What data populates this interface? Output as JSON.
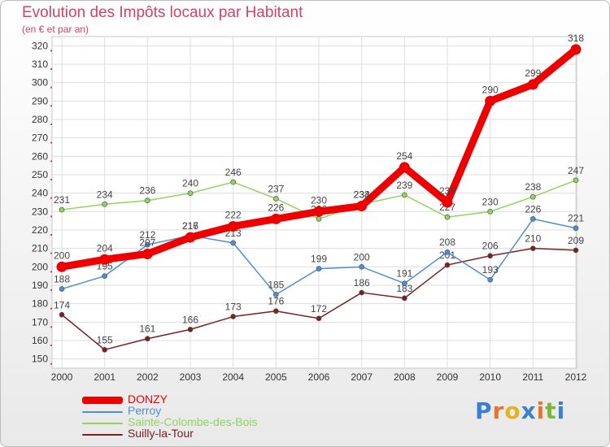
{
  "title": "Evolution des Impôts locaux par Habitant",
  "subtitle": "(en € et par an)",
  "logo": {
    "letters": [
      "P",
      "r",
      "o",
      "x",
      "i",
      "t",
      "i"
    ],
    "colors": [
      "#3b7fd0",
      "#e8722e",
      "#e4b321",
      "#3b7fd0",
      "#e8722e",
      "#79b83a",
      "#3b7fd0"
    ]
  },
  "chart_data": {
    "type": "line",
    "x": [
      2000,
      2001,
      2002,
      2003,
      2004,
      2005,
      2006,
      2007,
      2008,
      2009,
      2010,
      2011,
      2012
    ],
    "ylim": [
      145,
      325
    ],
    "yticks": [
      150,
      160,
      170,
      180,
      190,
      200,
      210,
      220,
      230,
      240,
      250,
      260,
      270,
      280,
      290,
      300,
      310,
      320
    ],
    "series": [
      {
        "name": "Suilly-la-Tour",
        "color": "#7a2020",
        "values": [
          174,
          155,
          161,
          166,
          173,
          176,
          172,
          186,
          183,
          201,
          206,
          210,
          209
        ]
      },
      {
        "name": "Sainte-Colombe-des-Bois",
        "color": "#8fd45e",
        "values": [
          231,
          234,
          236,
          240,
          246,
          237,
          226,
          234,
          239,
          227,
          230,
          238,
          247
        ]
      },
      {
        "name": "Perroy",
        "color": "#4f8ed0",
        "values": [
          188,
          195,
          212,
          217,
          213,
          185,
          199,
          200,
          191,
          208,
          193,
          226,
          221
        ]
      },
      {
        "name": "DONZY",
        "color": "#ee0000",
        "values": [
          200,
          204,
          207,
          216,
          222,
          226,
          230,
          233,
          254,
          235,
          290,
          299,
          318
        ]
      }
    ],
    "legend": [
      "DONZY",
      "Perroy",
      "Sainte-Colombe-des-Bois",
      "Suilly-la-Tour"
    ]
  }
}
